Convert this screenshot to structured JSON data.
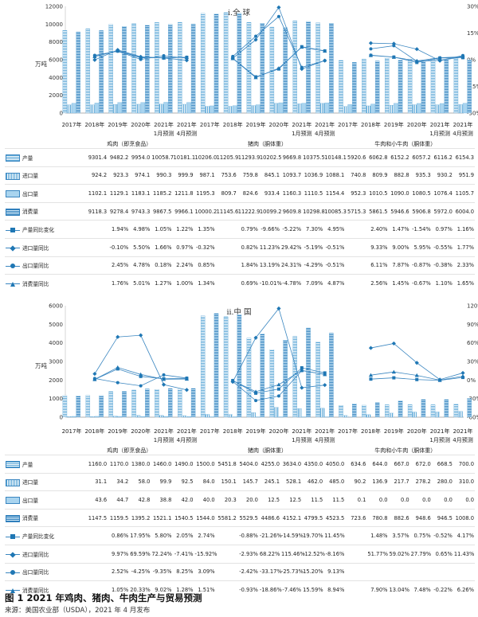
{
  "figure": {
    "caption": "图 1 2021 年鸡肉、猪肉、牛肉生产与贸易预测",
    "source": "来源：美国农业部（USDA），2021 年 4 月发布"
  },
  "chart_data": [
    {
      "type": "bar",
      "title": "i.全 球",
      "ylabel": "万吨",
      "ylim": [
        0,
        12000
      ],
      "y2lim": [
        -30,
        30
      ],
      "yticks": [
        0,
        2000,
        4000,
        6000,
        8000,
        10000,
        12000
      ],
      "y2ticks": [
        "-30%",
        "-15%",
        "0%",
        "15%",
        "30%"
      ],
      "categories": [
        "2017年",
        "2018年",
        "2019年",
        "2020年",
        "2021年1月预测",
        "2021年4月预测",
        "2017年",
        "2018年",
        "2019年",
        "2020年",
        "2021年1月预测",
        "2021年4月预测",
        "2017年",
        "2018年",
        "2019年",
        "2020年",
        "2021年1月预测",
        "2021年4月预测"
      ],
      "groups": [
        "鸡肉（即烹食品）",
        "猪肉（胴体重）",
        "牛肉和小牛肉（胴体重）"
      ],
      "bar_series": [
        {
          "name": "产量",
          "values": [
            9301.4,
            9482.2,
            9954.0,
            10058.7,
            10181.1,
            10206.0,
            11205.9,
            11293.9,
            10202.5,
            9669.8,
            10375.5,
            10148.1,
            5920.6,
            6062.8,
            6152.2,
            6057.2,
            6116.2,
            6154.3
          ]
        },
        {
          "name": "进口量",
          "values": [
            924.2,
            923.3,
            974.1,
            990.3,
            999.9,
            987.1,
            753.6,
            759.8,
            845.1,
            1093.7,
            1036.9,
            1088.1,
            740.8,
            809.9,
            882.8,
            935.3,
            930.2,
            951.9
          ]
        },
        {
          "name": "出口量",
          "values": [
            1102.1,
            1129.1,
            1183.1,
            1185.2,
            1211.8,
            1195.3,
            809.7,
            824.6,
            933.4,
            1160.3,
            1110.5,
            1154.4,
            952.3,
            1010.5,
            1090.0,
            1080.5,
            1076.4,
            1105.7
          ]
        },
        {
          "name": "消费量",
          "values": [
            9118.3,
            9278.4,
            9743.3,
            9867.5,
            9966.1,
            10000.2,
            11145.6,
            11222.9,
            10099.2,
            9609.8,
            10298.8,
            10085.3,
            5715.3,
            5861.5,
            5946.6,
            5906.8,
            5972.0,
            6004.0
          ]
        }
      ],
      "line_series": [
        {
          "name": "产量同比变化",
          "values": [
            null,
            1.94,
            4.98,
            1.05,
            1.22,
            1.35,
            null,
            0.79,
            -9.66,
            -5.22,
            7.3,
            4.95,
            null,
            2.4,
            1.47,
            -1.54,
            0.97,
            1.16
          ]
        },
        {
          "name": "进口量同比",
          "values": [
            null,
            -0.1,
            5.5,
            1.66,
            0.97,
            -0.32,
            null,
            0.82,
            11.23,
            29.42,
            -5.19,
            -0.51,
            null,
            9.33,
            9.0,
            5.95,
            -0.55,
            1.77
          ]
        },
        {
          "name": "出口量同比",
          "values": [
            null,
            2.45,
            4.78,
            0.18,
            2.24,
            0.85,
            null,
            1.84,
            13.19,
            24.31,
            -4.29,
            -0.51,
            null,
            6.11,
            7.87,
            -0.87,
            -0.38,
            2.33
          ]
        },
        {
          "name": "消费量同比",
          "values": [
            null,
            1.76,
            5.01,
            1.27,
            1.0,
            1.34,
            null,
            0.69,
            -10.01,
            -4.78,
            7.09,
            4.87,
            null,
            2.56,
            1.45,
            -0.67,
            1.1,
            1.65
          ]
        }
      ],
      "bar_labels": [
        "9301.4",
        "9482.2",
        "9954.0",
        "10058.7",
        "10181.1",
        "10206.0",
        "11205.9",
        "11293.9",
        "10202.5",
        "9669.8",
        "10375.5",
        "10148.1",
        "5920.6",
        "6062.8",
        "6152.2",
        "6057.2",
        "6116.2",
        "6154.3",
        "924.2",
        "923.3",
        "974.1",
        "990.3",
        "999.9",
        "987.1",
        "753.6",
        "759.8",
        "845.1",
        "1093.7",
        "1036.9",
        "1088.1",
        "740.8",
        "809.9",
        "882.8",
        "935.3",
        "930.2",
        "951.9",
        "1102.1",
        "1129.1",
        "1183.1",
        "1185.2",
        "1211.8",
        "1195.3",
        "809.7",
        "824.6",
        "933.4",
        "1160.3",
        "1110.5",
        "1154.4",
        "952.3",
        "1010.5",
        "1090.0",
        "1080.5",
        "1076.4",
        "1105.7",
        "9118.3",
        "9278.4",
        "9743.3",
        "9867.5",
        "9966.1",
        "10000.2",
        "11145.6",
        "11222.9",
        "10099.2",
        "9609.8",
        "10298.8",
        "10085.3",
        "5715.3",
        "5861.5",
        "5946.6",
        "5906.8",
        "5972.0",
        "6004.0"
      ],
      "line_labels": [
        [
          "",
          "1.94%",
          "4.98%",
          "1.05%",
          "1.22%",
          "1.35%",
          "",
          "0.79%",
          "-9.66%",
          "-5.22%",
          "7.30%",
          "4.95%",
          "",
          "2.40%",
          "1.47%",
          "-1.54%",
          "0.97%",
          "1.16%"
        ],
        [
          "",
          "-0.10%",
          "5.50%",
          "1.66%",
          "0.97%",
          "-0.32%",
          "",
          "0.82%",
          "11.23%",
          "29.42%",
          "-5.19%",
          "-0.51%",
          "",
          "9.33%",
          "9.00%",
          "5.95%",
          "-0.55%",
          "1.77%"
        ],
        [
          "",
          "2.45%",
          "4.78%",
          "0.18%",
          "2.24%",
          "0.85%",
          "",
          "1.84%",
          "13.19%",
          "24.31%",
          "-4.29%",
          "-0.51%",
          "",
          "6.11%",
          "7.87%",
          "-0.87%",
          "-0.38%",
          "2.33%"
        ],
        [
          "",
          "1.76%",
          "5.01%",
          "1.27%",
          "1.00%",
          "1.34%",
          "",
          "0.69%",
          "-10.01%",
          "-4.78%",
          "7.09%",
          "4.87%",
          "",
          "2.56%",
          "1.45%",
          "-0.67%",
          "1.10%",
          "1.65%"
        ]
      ]
    },
    {
      "type": "bar",
      "title": "ii.中 国",
      "ylabel": "万吨",
      "ylim": [
        0,
        6000
      ],
      "y2lim": [
        -60,
        120
      ],
      "yticks": [
        0,
        1000,
        2000,
        3000,
        4000,
        5000,
        6000
      ],
      "y2ticks": [
        "-60%",
        "-30%",
        "0%",
        "30%",
        "60%",
        "90%",
        "120%"
      ],
      "categories": [
        "2017年",
        "2018年",
        "2019年",
        "2020年",
        "2021年1月预测",
        "2021年4月预测",
        "2017年",
        "2018年",
        "2019年",
        "2020年",
        "2021年1月预测",
        "2021年4月预测",
        "2017年",
        "2018年",
        "2019年",
        "2020年",
        "2021年1月预测",
        "2021年4月预测"
      ],
      "groups": [
        "鸡肉（即烹食品）",
        "猪肉（胴体重）",
        "牛肉和小牛肉（胴体重）"
      ],
      "bar_series": [
        {
          "name": "产量",
          "values": [
            1160.0,
            1170.0,
            1380.0,
            1460.0,
            1490.0,
            1500.0,
            5451.8,
            5404.0,
            4255.0,
            3634.0,
            4350.0,
            4050.0,
            634.6,
            644.0,
            667.0,
            672.0,
            668.5,
            700.0
          ]
        },
        {
          "name": "进口量",
          "values": [
            31.1,
            34.2,
            58.0,
            99.9,
            92.5,
            84.0,
            150.1,
            145.7,
            245.1,
            528.1,
            462.0,
            485.0,
            90.2,
            136.9,
            217.7,
            278.2,
            280.0,
            310.0
          ]
        },
        {
          "name": "出口量",
          "values": [
            43.6,
            44.7,
            42.8,
            38.8,
            42.0,
            40.0,
            20.3,
            20.0,
            12.5,
            12.5,
            11.5,
            11.5,
            0.1,
            0.0,
            0.0,
            0.0,
            0.0,
            0.0
          ]
        },
        {
          "name": "消费量",
          "values": [
            1147.5,
            1159.5,
            1395.2,
            1521.1,
            1540.5,
            1544.0,
            5581.2,
            5529.5,
            4486.6,
            4152.1,
            4799.5,
            4523.5,
            723.6,
            780.8,
            882.6,
            948.6,
            946.5,
            1008.0
          ]
        }
      ],
      "line_series": [
        {
          "name": "产量同比变化",
          "values": [
            null,
            0.86,
            17.95,
            5.8,
            2.05,
            2.74,
            null,
            -0.88,
            -21.26,
            -14.59,
            19.7,
            11.45,
            null,
            1.48,
            3.57,
            0.75,
            -0.52,
            4.17
          ]
        },
        {
          "name": "进口量同比",
          "values": [
            null,
            9.97,
            69.59,
            72.24,
            -7.41,
            -15.92,
            null,
            -2.93,
            68.22,
            115.46,
            -12.52,
            -8.16,
            null,
            51.77,
            59.02,
            27.79,
            0.65,
            11.43
          ]
        },
        {
          "name": "出口量同比",
          "values": [
            null,
            2.52,
            -4.25,
            -9.35,
            8.25,
            3.09,
            null,
            -2.42,
            -33.17,
            -25.73,
            15.2,
            9.13,
            null,
            null,
            null,
            null,
            null,
            null
          ]
        },
        {
          "name": "消费量同比",
          "values": [
            null,
            1.05,
            20.33,
            9.02,
            1.28,
            1.51,
            null,
            -0.93,
            -18.86,
            -7.46,
            15.59,
            8.94,
            null,
            7.9,
            13.04,
            7.48,
            -0.22,
            6.26
          ]
        }
      ],
      "bar_labels": [
        "1160.0",
        "1170.0",
        "1380.0",
        "1460.0",
        "1490.0",
        "1500.0",
        "5451.8",
        "5404.0",
        "4255.0",
        "3634.0",
        "4350.0",
        "4050.0",
        "634.6",
        "644.0",
        "667.0",
        "672.0",
        "668.5",
        "700.0",
        "31.1",
        "34.2",
        "58.0",
        "99.9",
        "92.5",
        "84.0",
        "150.1",
        "145.7",
        "245.1",
        "528.1",
        "462.0",
        "485.0",
        "90.2",
        "136.9",
        "217.7",
        "278.2",
        "280.0",
        "310.0",
        "43.6",
        "44.7",
        "42.8",
        "38.8",
        "42.0",
        "40.0",
        "20.3",
        "20.0",
        "12.5",
        "12.5",
        "11.5",
        "11.5",
        "0.1",
        "0.0",
        "0.0",
        "0.0",
        "0.0",
        "0.0",
        "1147.5",
        "1159.5",
        "1395.2",
        "1521.1",
        "1540.5",
        "1544.0",
        "5581.2",
        "5529.5",
        "4486.6",
        "4152.1",
        "4799.5",
        "4523.5",
        "723.6",
        "780.8",
        "882.6",
        "948.6",
        "946.5",
        "1008.0"
      ],
      "line_labels": [
        [
          "",
          "0.86%",
          "17.95%",
          "5.80%",
          "2.05%",
          "2.74%",
          "",
          "-0.88%",
          "-21.26%",
          "-14.59%",
          "19.70%",
          "11.45%",
          "",
          "1.48%",
          "3.57%",
          "0.75%",
          "-0.52%",
          "4.17%"
        ],
        [
          "",
          "9.97%",
          "69.59%",
          "72.24%",
          "-7.41%",
          "-15.92%",
          "",
          "-2.93%",
          "68.22%",
          "115.46%",
          "-12.52%",
          "-8.16%",
          "",
          "51.77%",
          "59.02%",
          "27.79%",
          "0.65%",
          "11.43%"
        ],
        [
          "",
          "2.52%",
          "-4.25%",
          "-9.35%",
          "8.25%",
          "3.09%",
          "",
          "-2.42%",
          "-33.17%",
          "-25.73%",
          "15.20%",
          "9.13%",
          "",
          "",
          "",
          "",
          "",
          ""
        ],
        [
          "",
          "1.05%",
          "20.33%",
          "9.02%",
          "1.28%",
          "1.51%",
          "",
          "-0.93%",
          "-18.86%",
          "-7.46%",
          "15.59%",
          "8.94%",
          "",
          "7.90%",
          "13.04%",
          "7.48%",
          "-0.22%",
          "6.26%"
        ]
      ]
    }
  ]
}
